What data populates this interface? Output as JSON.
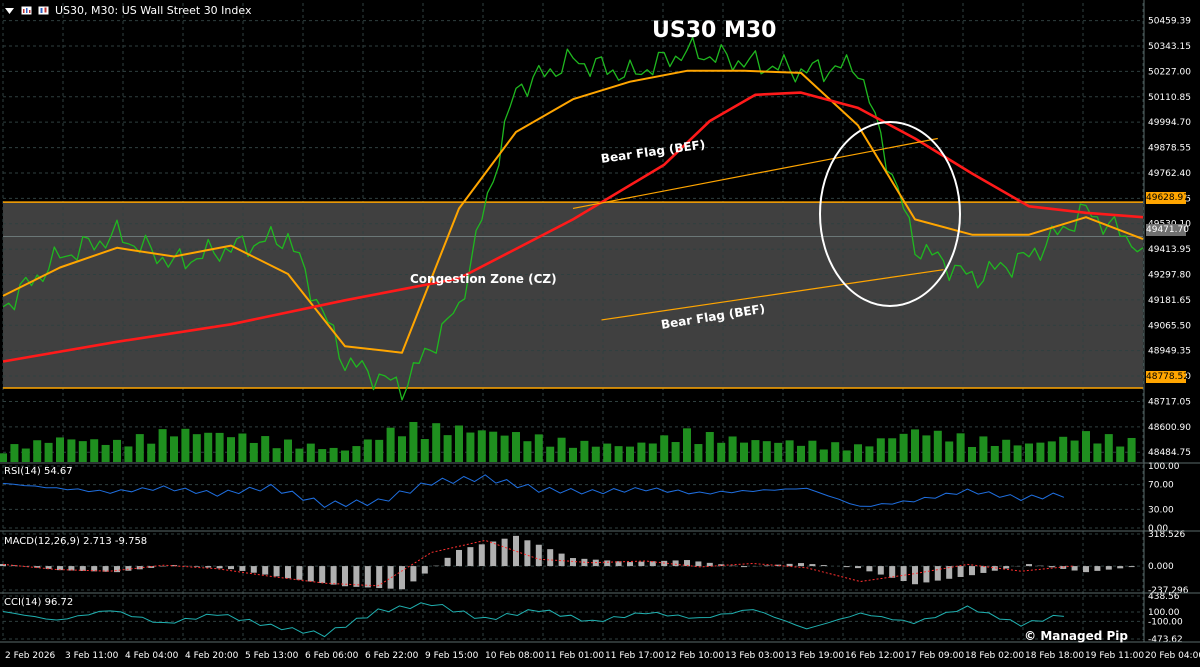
{
  "header": {
    "text": "US30, M30:  US Wall Street 30 Index"
  },
  "title": "US30 M30",
  "annotations": {
    "bear_flag_upper": "Bear Flag (BEF)",
    "bear_flag_lower": "Bear Flag (BEF)",
    "congestion_zone": "Congestion Zone (CZ)"
  },
  "credit": "© Managed Pip",
  "colors": {
    "background": "#000000",
    "grid": "#2f3f3f",
    "price": "#1fb81f",
    "ma_fast": "#ffa500",
    "ma_slow": "#ff1a1a",
    "zone_fill": "#404040",
    "zone_line": "#ffa500",
    "volume": "#1f8f1f",
    "rsi": "#1f6fe0",
    "macd_hist": "#b0b0b0",
    "macd_signal": "#ff3030",
    "cci": "#20b0b0",
    "circle": "#ffffff"
  },
  "price_panel": {
    "label": "",
    "ylim": [
      48440,
      50540
    ],
    "ticks": [
      "50459.39",
      "50343.15",
      "50227.00",
      "50110.85",
      "49994.70",
      "49878.55",
      "49762.40",
      "49646.25",
      "49530.10",
      "49413.95",
      "49297.80",
      "49181.65",
      "49065.50",
      "48949.35",
      "48833.20",
      "48717.05",
      "48600.90",
      "48484.75"
    ],
    "tick_values": [
      50459.39,
      50343.15,
      50227.0,
      50110.85,
      49994.7,
      49878.55,
      49762.4,
      49646.25,
      49530.1,
      49413.95,
      49297.8,
      49181.65,
      49065.5,
      48949.35,
      48833.2,
      48717.05,
      48600.9,
      48484.75
    ],
    "highlight": {
      "zone_top": {
        "value": 49628.97,
        "label": "49628.97"
      },
      "zone_bottom": {
        "value": 48778.52,
        "label": "48778.52"
      },
      "current": {
        "value": 49471.7,
        "label": "49471.70"
      }
    }
  },
  "rsi_panel": {
    "label": "RSI(14) 54.67",
    "ticks": [
      "100.00",
      "70.00",
      "30.00",
      "0.00"
    ],
    "tick_values": [
      100,
      70,
      30,
      0
    ]
  },
  "macd_panel": {
    "label": "MACD(12,26,9) 2.713 -9.758",
    "ticks": [
      "318.526",
      "0.000",
      "-237.296"
    ],
    "tick_values": [
      318.526,
      0,
      -237.296
    ]
  },
  "cci_panel": {
    "label": "CCI(14) 96.72",
    "ticks": [
      "438.56",
      "100.00",
      "-100.00",
      "-473.62"
    ],
    "tick_values": [
      438.56,
      100,
      -100,
      -473.62
    ]
  },
  "x_axis": {
    "ticks": [
      "2 Feb 2026",
      "3 Feb 11:00",
      "4 Feb 04:00",
      "4 Feb 20:00",
      "5 Feb 13:00",
      "6 Feb 06:00",
      "6 Feb 22:00",
      "9 Feb 15:00",
      "10 Feb 08:00",
      "11 Feb 01:00",
      "11 Feb 17:00",
      "12 Feb 10:00",
      "13 Feb 03:00",
      "13 Feb 19:00",
      "16 Feb 12:00",
      "17 Feb 09:00",
      "18 Feb 02:00",
      "18 Feb 18:00",
      "19 Feb 11:00",
      "20 Feb 04:00"
    ]
  },
  "chart_data": {
    "type": "line",
    "series": [
      {
        "name": "",
        "role": "price",
        "x_index": [
          0,
          5,
          10,
          15,
          20,
          25,
          30,
          35,
          40,
          45,
          50,
          55,
          60,
          65,
          70,
          75,
          80,
          85,
          90,
          95,
          100
        ],
        "values": [
          49150,
          49380,
          49480,
          49350,
          49420,
          49470,
          48900,
          48780,
          49150,
          50150,
          50280,
          50210,
          50320,
          50270,
          50230,
          50250,
          49430,
          49280,
          49380,
          49590,
          49420
        ]
      },
      {
        "name": "",
        "role": "ma_fast",
        "x_index": [
          0,
          5,
          10,
          15,
          20,
          25,
          30,
          35,
          40,
          45,
          50,
          55,
          60,
          65,
          70,
          75,
          80,
          85,
          90,
          95,
          100
        ],
        "values": [
          49200,
          49330,
          49420,
          49380,
          49430,
          49300,
          48970,
          48940,
          49600,
          49950,
          50100,
          50180,
          50230,
          50230,
          50220,
          49980,
          49550,
          49480,
          49480,
          49560,
          49460
        ]
      },
      {
        "name": "",
        "role": "ma_slow",
        "x_index": [
          0,
          10,
          20,
          30,
          40,
          50,
          58,
          62,
          66,
          70,
          75,
          80,
          85,
          90,
          95,
          100
        ],
        "values": [
          48900,
          48990,
          49070,
          49180,
          49280,
          49550,
          49800,
          50000,
          50120,
          50130,
          50060,
          49920,
          49760,
          49610,
          49580,
          49560
        ]
      }
    ],
    "volume": [
      0.35,
      0.6,
      0.5,
      0.8,
      0.7,
      0.5,
      0.3,
      0.9,
      0.85,
      0.7,
      0.5,
      0.4,
      0.75,
      0.55,
      0.5,
      0.4,
      0.8,
      0.6,
      0.45,
      0.7,
      0.5
    ],
    "rsi": [
      72,
      64,
      58,
      65,
      55,
      66,
      38,
      42,
      74,
      81,
      62,
      58,
      63,
      56,
      60,
      64,
      34,
      44,
      60,
      48,
      55
    ],
    "macd": [
      20,
      -40,
      -60,
      10,
      -30,
      -120,
      -200,
      -230,
      160,
      300,
      80,
      40,
      60,
      -10,
      30,
      -20,
      -180,
      -90,
      20,
      -60,
      2.7
    ],
    "cci": [
      110,
      -80,
      140,
      -150,
      60,
      -200,
      -380,
      120,
      280,
      -60,
      150,
      -110,
      90,
      -40,
      160,
      -260,
      70,
      -130,
      200,
      -170,
      96.72
    ]
  }
}
